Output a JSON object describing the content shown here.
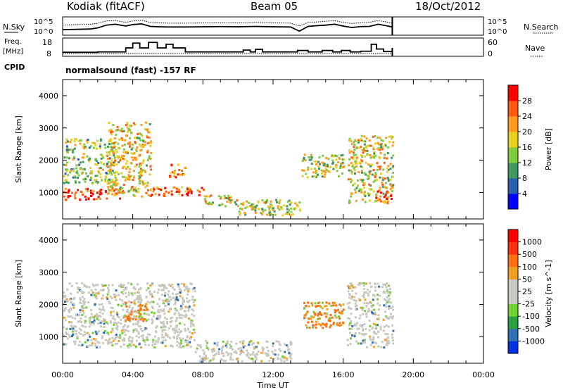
{
  "header": {
    "station": "Kodiak (fitACF)",
    "beam": "Beam 05",
    "date": "18/Oct/2012"
  },
  "chart_data": [
    {
      "type": "line",
      "panel": "noise",
      "ylabel_left": "N.Sky",
      "ylabel_right": "N.Search",
      "yticks_left": [
        "10^5",
        "10^0"
      ],
      "yticks_right": [
        "10^5",
        "10^0"
      ],
      "series": [
        {
          "name": "N.Sky",
          "style": "solid",
          "x": [
            0,
            0.8,
            1.6,
            2.0,
            2.5,
            3.0,
            3.6,
            4.0,
            4.5,
            5.0,
            5.5,
            6.0,
            7.0,
            8.0,
            9.0,
            10.0,
            11.0,
            12.0,
            13.0,
            13.5,
            14.0,
            14.5,
            15.0,
            15.5,
            16.0,
            16.5,
            17.0,
            17.5,
            18.0,
            18.8
          ],
          "values": [
            0.3,
            0.32,
            0.34,
            0.4,
            0.55,
            0.6,
            0.5,
            0.58,
            0.62,
            0.48,
            0.46,
            0.45,
            0.45,
            0.46,
            0.47,
            0.46,
            0.48,
            0.46,
            0.45,
            0.22,
            0.48,
            0.52,
            0.55,
            0.6,
            0.5,
            0.42,
            0.47,
            0.48,
            0.6,
            0.45
          ]
        },
        {
          "name": "N.Search",
          "style": "dotted",
          "x": [
            0,
            0.8,
            1.6,
            2.0,
            2.5,
            3.0,
            3.6,
            4.0,
            4.5,
            5.0,
            5.5,
            6.0,
            7.0,
            8.0,
            9.0,
            10.0,
            11.0,
            12.0,
            13.0,
            13.5,
            14.0,
            14.5,
            15.0,
            15.5,
            16.0,
            16.5,
            17.0,
            17.5,
            18.0,
            18.8
          ],
          "values": [
            0.55,
            0.58,
            0.6,
            0.65,
            0.78,
            0.8,
            0.7,
            0.78,
            0.82,
            0.7,
            0.68,
            0.66,
            0.66,
            0.67,
            0.68,
            0.67,
            0.7,
            0.68,
            0.66,
            0.5,
            0.7,
            0.72,
            0.76,
            0.8,
            0.7,
            0.64,
            0.68,
            0.7,
            0.8,
            0.66
          ]
        }
      ]
    },
    {
      "type": "line",
      "panel": "frequency",
      "ylabel_left": "Freq. [MHz]",
      "ylabel_right": "Nave",
      "yticks_left": [
        "18",
        "8"
      ],
      "yticks_right": [
        "60",
        "0"
      ],
      "ylim_left": [
        8,
        18
      ],
      "series": [
        {
          "name": "Freq. [MHz]",
          "style": "step",
          "x": [
            0,
            2.0,
            3.6,
            4.0,
            4.4,
            4.9,
            5.4,
            5.9,
            6.3,
            7.0,
            9.0,
            10.3,
            10.7,
            11.0,
            11.4,
            12.0,
            13.4,
            14.0,
            14.8,
            15.4,
            15.9,
            16.4,
            17.0,
            17.6,
            17.9,
            18.3,
            18.8
          ],
          "values": [
            10.2,
            10.4,
            12.6,
            15.2,
            12.6,
            15.6,
            12.6,
            14.6,
            12.6,
            10.4,
            10.4,
            11.4,
            10.4,
            11.8,
            10.4,
            10.4,
            11.2,
            10.4,
            11.2,
            10.4,
            11.2,
            10.4,
            10.8,
            14.6,
            12.0,
            10.6,
            10.4
          ]
        }
      ]
    },
    {
      "type": "text",
      "panel": "cpid",
      "label": "CPID",
      "program": "normalsound (fast) -157 RF"
    },
    {
      "type": "heatmap",
      "panel": "power",
      "parameter": "Power",
      "ylabel": "Slant Range [km]",
      "yticks": [
        "1000",
        "2000",
        "3000",
        "4000"
      ],
      "ylim": [
        180,
        4500
      ],
      "xlim_hours": [
        0,
        24
      ],
      "colorbar": {
        "label": "Power [dB]",
        "ticks": [
          "4",
          "8",
          "12",
          "16",
          "20",
          "24",
          "28"
        ],
        "colors": [
          "#0000ff",
          "#2a5fb0",
          "#409860",
          "#7fcc40",
          "#e8d020",
          "#ff9a20",
          "#ff5a10",
          "#ff0000"
        ]
      },
      "echo_regions": [
        {
          "t0": 0.0,
          "t1": 3.5,
          "r0": 800,
          "r1": 1150,
          "level": 0.85
        },
        {
          "t0": 0.0,
          "t1": 3.0,
          "r0": 1300,
          "r1": 2700,
          "level": 0.45
        },
        {
          "t0": 2.5,
          "t1": 5.0,
          "r0": 900,
          "r1": 3200,
          "level": 0.6
        },
        {
          "t0": 5.0,
          "t1": 8.0,
          "r0": 900,
          "r1": 1200,
          "level": 0.8
        },
        {
          "t0": 6.0,
          "t1": 7.0,
          "r0": 1500,
          "r1": 1900,
          "level": 0.75
        },
        {
          "t0": 8.0,
          "t1": 10.0,
          "r0": 600,
          "r1": 950,
          "level": 0.55
        },
        {
          "t0": 10.0,
          "t1": 13.5,
          "r0": 300,
          "r1": 800,
          "level": 0.5
        },
        {
          "t0": 13.6,
          "t1": 16.0,
          "r0": 1500,
          "r1": 2200,
          "level": 0.5
        },
        {
          "t0": 16.2,
          "t1": 18.8,
          "r0": 700,
          "r1": 2800,
          "level": 0.55
        },
        {
          "t0": 17.8,
          "t1": 18.8,
          "r0": 700,
          "r1": 1100,
          "level": 0.9
        }
      ]
    },
    {
      "type": "heatmap",
      "panel": "velocity",
      "parameter": "Velocity",
      "ylabel": "Slant Range [km]",
      "yticks": [
        "1000",
        "2000",
        "3000",
        "4000"
      ],
      "ylim": [
        180,
        4500
      ],
      "xlim_hours": [
        0,
        24
      ],
      "xticks": [
        "00:00",
        "04:00",
        "08:00",
        "12:00",
        "16:00",
        "20:00",
        "00:00"
      ],
      "xlabel": "Time UT",
      "colorbar": {
        "label": "Velocity [m s^-1]",
        "ticks": [
          "1000",
          "500",
          "100",
          "50",
          "25",
          "-25",
          "-100",
          "-500",
          "-1000"
        ],
        "colors": [
          "#0030e0",
          "#3070b0",
          "#2a9e40",
          "#70d030",
          "#c8c8c0",
          "#c8c8c0",
          "#f0a020",
          "#ff7010",
          "#ff3010",
          "#ff0000"
        ]
      },
      "echo_regions": [
        {
          "t0": 0.0,
          "t1": 7.5,
          "r0": 700,
          "r1": 2700,
          "level": "ground"
        },
        {
          "t0": 7.5,
          "t1": 13.0,
          "r0": 250,
          "r1": 900,
          "level": "ground"
        },
        {
          "t0": 13.7,
          "t1": 16.0,
          "r0": 1300,
          "r1": 2100,
          "level": "negative"
        },
        {
          "t0": 16.2,
          "t1": 18.8,
          "r0": 700,
          "r1": 2700,
          "level": "ground"
        },
        {
          "t0": 3.5,
          "t1": 4.8,
          "r0": 1500,
          "r1": 2100,
          "level": "negative"
        }
      ]
    }
  ]
}
